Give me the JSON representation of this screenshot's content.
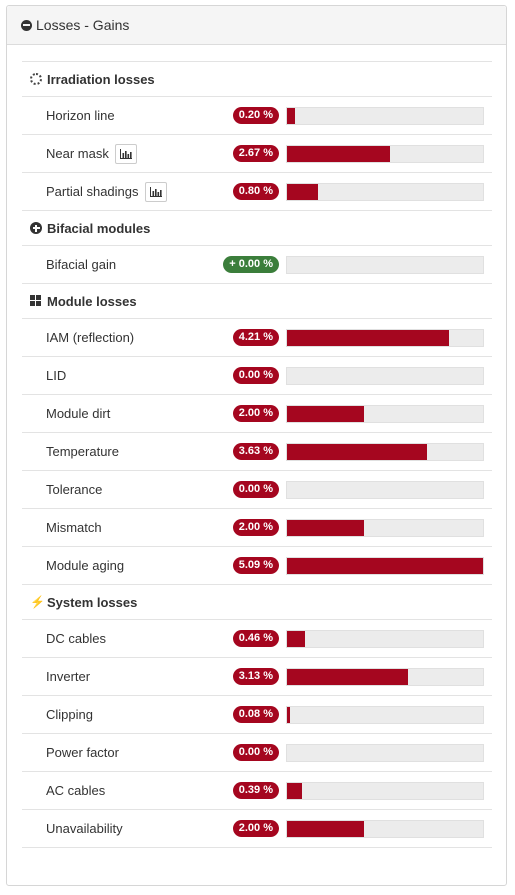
{
  "panel": {
    "title": "Losses - Gains",
    "icon": "minus-circle-icon"
  },
  "colors": {
    "loss": "#a5061f",
    "gain": "#3b7e3b",
    "track": "#ececec"
  },
  "sections": [
    {
      "id": "irradiation",
      "title": "Irradiation losses",
      "icon": "sun-icon",
      "rows": [
        {
          "label": "Horizon line",
          "value": "0.20 %",
          "fraction": 0.039,
          "chart_button": false
        },
        {
          "label": "Near mask",
          "value": "2.67 %",
          "fraction": 0.525,
          "chart_button": true
        },
        {
          "label": "Partial shadings",
          "value": "0.80 %",
          "fraction": 0.157,
          "chart_button": true
        }
      ]
    },
    {
      "id": "bifacial",
      "title": "Bifacial modules",
      "icon": "plus-circle-icon",
      "rows": [
        {
          "label": "Bifacial gain",
          "value": "+ 0.00 %",
          "fraction": 0,
          "chart_button": false,
          "gain": true
        }
      ]
    },
    {
      "id": "module",
      "title": "Module losses",
      "icon": "grid-icon",
      "rows": [
        {
          "label": "IAM (reflection)",
          "value": "4.21 %",
          "fraction": 0.827
        },
        {
          "label": "LID",
          "value": "0.00 %",
          "fraction": 0
        },
        {
          "label": "Module dirt",
          "value": "2.00 %",
          "fraction": 0.393
        },
        {
          "label": "Temperature",
          "value": "3.63 %",
          "fraction": 0.713
        },
        {
          "label": "Tolerance",
          "value": "0.00 %",
          "fraction": 0
        },
        {
          "label": "Mismatch",
          "value": "2.00 %",
          "fraction": 0.393
        },
        {
          "label": "Module aging",
          "value": "5.09 %",
          "fraction": 1.0
        }
      ]
    },
    {
      "id": "system",
      "title": "System losses",
      "icon": "bolt-icon",
      "rows": [
        {
          "label": "DC cables",
          "value": "0.46 %",
          "fraction": 0.09
        },
        {
          "label": "Inverter",
          "value": "3.13 %",
          "fraction": 0.615
        },
        {
          "label": "Clipping",
          "value": "0.08 %",
          "fraction": 0.016
        },
        {
          "label": "Power factor",
          "value": "0.00 %",
          "fraction": 0
        },
        {
          "label": "AC cables",
          "value": "0.39 %",
          "fraction": 0.077
        },
        {
          "label": "Unavailability",
          "value": "2.00 %",
          "fraction": 0.393
        }
      ]
    }
  ]
}
